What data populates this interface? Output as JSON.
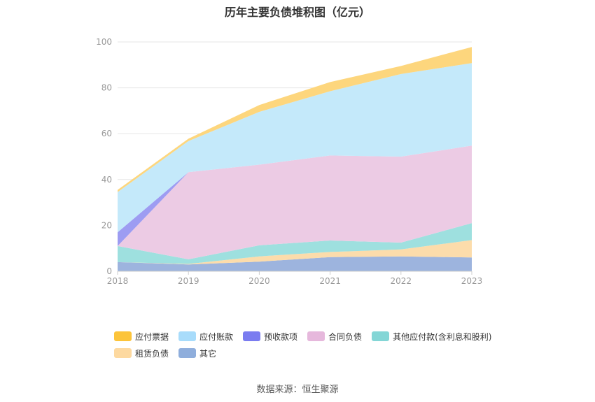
{
  "title": "历年主要负债堆积图（亿元）",
  "source": "数据来源：恒生聚源",
  "chart_data": {
    "type": "area",
    "stacked": true,
    "categories": [
      "2018",
      "2019",
      "2020",
      "2021",
      "2022",
      "2023"
    ],
    "ylim": [
      0,
      100
    ],
    "yticks": [
      0,
      20,
      40,
      60,
      80,
      100
    ],
    "grid": true,
    "legend_position": "bottom",
    "series": [
      {
        "name": "其它",
        "color": "#9db4de",
        "values": [
          4.0,
          3.0,
          4.2,
          6.2,
          6.5,
          6.0
        ]
      },
      {
        "name": "租赁负债",
        "color": "#fcdcab",
        "values": [
          0.0,
          0.2,
          2.3,
          2.2,
          3.0,
          7.6
        ]
      },
      {
        "name": "其他应付款(含利息和股利)",
        "color": "#9ee0df",
        "values": [
          7.0,
          2.0,
          4.8,
          5.0,
          3.0,
          7.4
        ]
      },
      {
        "name": "合同负债",
        "color": "#eccbe4",
        "values": [
          0.0,
          38.0,
          35.2,
          37.1,
          37.5,
          33.8
        ]
      },
      {
        "name": "预收款项",
        "color": "#9d9cf2",
        "values": [
          6.0,
          0.0,
          0.0,
          0.0,
          0.0,
          0.0
        ]
      },
      {
        "name": "应付账款",
        "color": "#c4e9fa",
        "values": [
          17.5,
          13.6,
          23.0,
          28.0,
          36.0,
          36.0
        ]
      },
      {
        "name": "应付票据",
        "color": "#fdd67d",
        "values": [
          1.0,
          1.0,
          3.0,
          4.0,
          3.5,
          7.0
        ]
      }
    ],
    "legend": {
      "rows": [
        [
          {
            "label": "应付票据",
            "color": "#fcc43a"
          },
          {
            "label": "应付账款",
            "color": "#a8dcfb"
          },
          {
            "label": "预收款项",
            "color": "#7a7cf0"
          },
          {
            "label": "合同负债",
            "color": "#e6b8dc"
          },
          {
            "label": "其他应付款(含利息和股利)",
            "color": "#84d6d6"
          }
        ],
        [
          {
            "label": "租赁负债",
            "color": "#fdd9a0"
          },
          {
            "label": "其它",
            "color": "#8faedc"
          }
        ]
      ]
    }
  }
}
